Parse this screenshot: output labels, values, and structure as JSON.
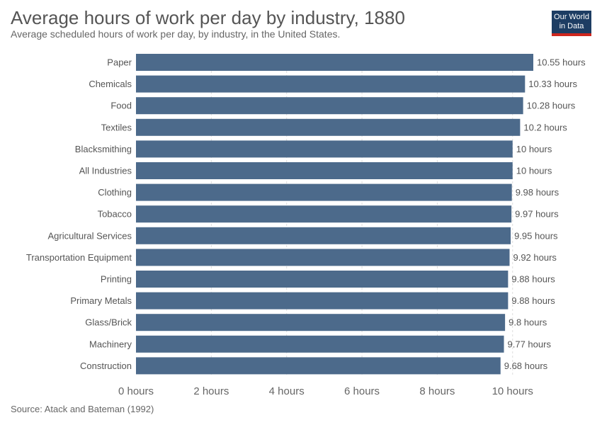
{
  "title": "Average hours of work per day by industry, 1880",
  "subtitle": "Average scheduled hours of work per day, by industry, in the United States.",
  "logo": {
    "line1": "Our World",
    "line2": "in Data"
  },
  "source": "Source: Atack and Bateman (1992)",
  "colors": {
    "bar": "#4c6a8b",
    "text": "#555555",
    "grid": "#dddddd"
  },
  "chart_data": {
    "type": "bar",
    "orientation": "horizontal",
    "title": "Average hours of work per day by industry, 1880",
    "subtitle": "Average scheduled hours of work per day, by industry, in the United States.",
    "xlabel": "",
    "ylabel": "",
    "xlim": [
      0,
      10.55
    ],
    "x_ticks": [
      0,
      2,
      4,
      6,
      8,
      10
    ],
    "x_tick_labels": [
      "0 hours",
      "2 hours",
      "4 hours",
      "6 hours",
      "8 hours",
      "10 hours"
    ],
    "grid": true,
    "categories": [
      "Paper",
      "Chemicals",
      "Food",
      "Textiles",
      "Blacksmithing",
      "All Industries",
      "Clothing",
      "Tobacco",
      "Agricultural Services",
      "Transportation Equipment",
      "Printing",
      "Primary Metals",
      "Glass/Brick",
      "Machinery",
      "Construction"
    ],
    "values": [
      10.55,
      10.33,
      10.28,
      10.2,
      10,
      10,
      9.98,
      9.97,
      9.95,
      9.92,
      9.88,
      9.88,
      9.8,
      9.77,
      9.68
    ],
    "value_labels": [
      "10.55 hours",
      "10.33 hours",
      "10.28 hours",
      "10.2 hours",
      "10 hours",
      "10 hours",
      "9.98 hours",
      "9.97 hours",
      "9.95 hours",
      "9.92 hours",
      "9.88 hours",
      "9.88 hours",
      "9.8 hours",
      "9.77 hours",
      "9.68 hours"
    ]
  }
}
